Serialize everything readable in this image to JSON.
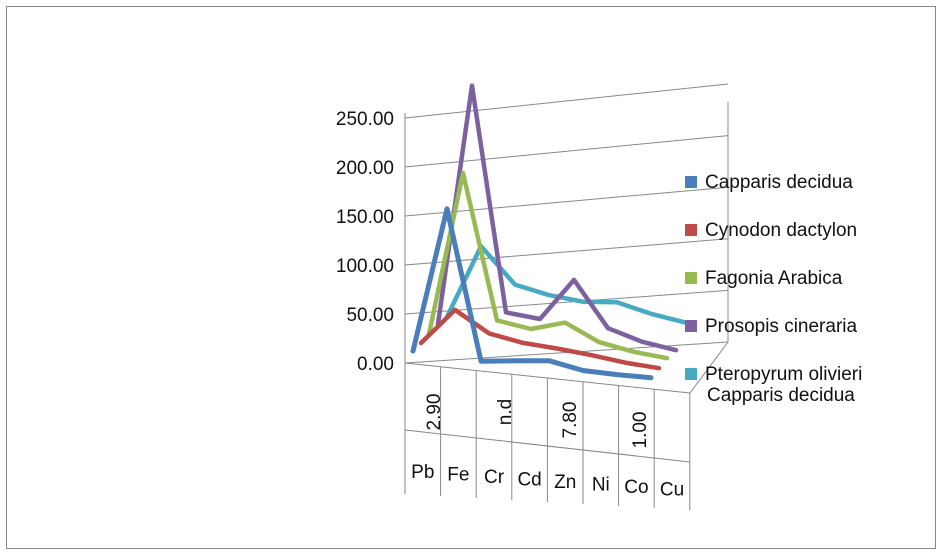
{
  "chart_data": {
    "type": "line",
    "title": "",
    "xlabel": "",
    "ylabel": "",
    "ylim": [
      0,
      250
    ],
    "y_ticks": [
      "0.00",
      "50.00",
      "100.00",
      "150.00",
      "200.00",
      "250.00"
    ],
    "categories": [
      "Pb",
      "Fe",
      "Cr",
      "Cd",
      "Zn",
      "Ni",
      "Co",
      "Cu"
    ],
    "value_labels": [
      "2.90",
      "n.d",
      "7.80",
      "1.00"
    ],
    "depth_label": "Capparis decidua",
    "legend_position": "right",
    "grid": true,
    "series": [
      {
        "name": "Capparis decidua",
        "color": "#4a7ebb",
        "values": [
          2.9,
          150,
          0,
          4,
          7.8,
          1.5,
          1.0,
          1.5
        ]
      },
      {
        "name": "Cynodon dactylon",
        "color": "#be4b48",
        "values": [
          3,
          40,
          20,
          14,
          12,
          9,
          5,
          3
        ]
      },
      {
        "name": "Fagonia Arabica",
        "color": "#98b954",
        "values": [
          4,
          170,
          25,
          20,
          30,
          14,
          8,
          5
        ]
      },
      {
        "name": "Prosopis cineraria",
        "color": "#7d60a0",
        "values": [
          6,
          250,
          25,
          22,
          65,
          20,
          10,
          5
        ]
      },
      {
        "name": "Pteropyrum olivieri",
        "color": "#46aac5",
        "values": [
          5,
          80,
          45,
          38,
          35,
          38,
          30,
          25
        ]
      }
    ]
  }
}
